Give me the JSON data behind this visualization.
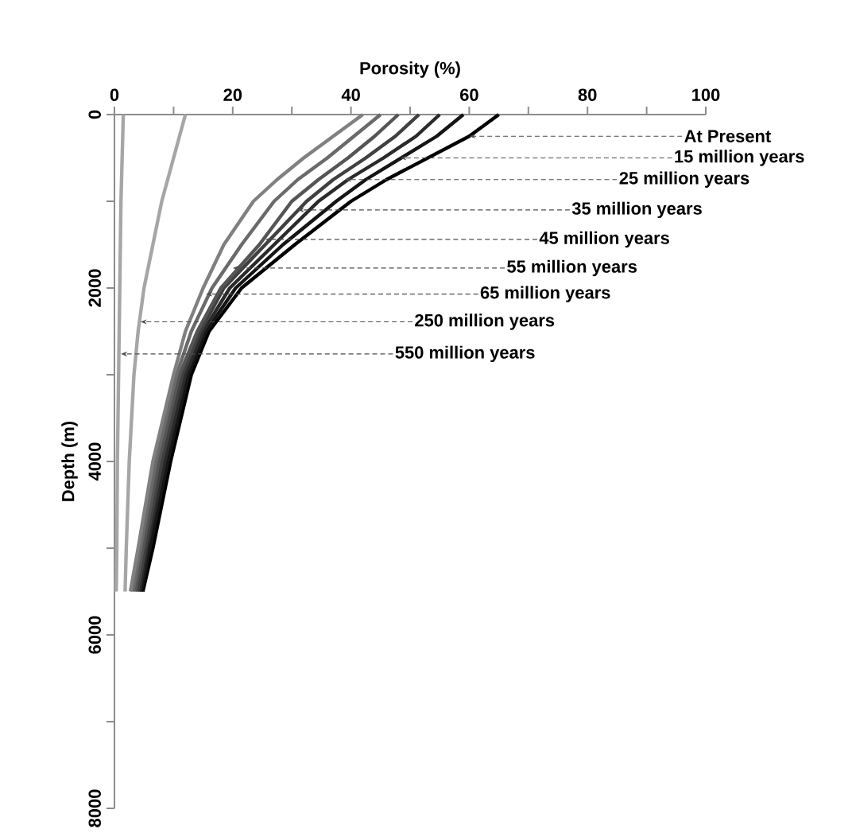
{
  "chart_data": {
    "type": "line",
    "xlabel": "Porosity (%)",
    "ylabel": "Depth (m)",
    "xlim": [
      0,
      100
    ],
    "ylim": [
      8000,
      0
    ],
    "xticks": [
      0,
      {
        "value": 10,
        "label": null
      },
      20,
      {
        "value": 30,
        "label": null
      },
      40,
      {
        "value": 50,
        "label": null
      },
      60,
      {
        "value": 70,
        "label": null
      },
      80,
      {
        "value": 90,
        "label": null
      },
      100
    ],
    "yticks": [
      0,
      {
        "value": 1000,
        "label": null
      },
      2000,
      {
        "value": 3000,
        "label": null
      },
      4000,
      {
        "value": 5000,
        "label": null
      },
      6000,
      {
        "value": 7000,
        "label": null
      },
      8000
    ],
    "series": [
      {
        "color": "#000000",
        "x": [
          65,
          60,
          53,
          46,
          40,
          30.5,
          21.5,
          16,
          13,
          9.5,
          6.5,
          4.8
        ],
        "values": [
          0,
          250,
          500,
          750,
          1000,
          1500,
          2000,
          2500,
          3000,
          4000,
          5000,
          5500
        ]
      },
      {
        "color": "#151515",
        "x": [
          59,
          54.5,
          48.5,
          42.5,
          37.5,
          28.5,
          20.5,
          15.5,
          12.5,
          9,
          6,
          4.5
        ],
        "values": [
          0,
          250,
          500,
          750,
          1000,
          1500,
          2000,
          2500,
          3000,
          4000,
          5000,
          5500
        ]
      },
      {
        "color": "#2a2a2a",
        "x": [
          55,
          51,
          45.5,
          39.5,
          34.5,
          27,
          19.5,
          15,
          12,
          8.5,
          5.5,
          4.2
        ],
        "values": [
          0,
          250,
          500,
          750,
          1000,
          1500,
          2000,
          2500,
          3000,
          4000,
          5000,
          5500
        ]
      },
      {
        "color": "#404040",
        "x": [
          51.5,
          47.5,
          42.5,
          37,
          32.5,
          25.5,
          18.5,
          14.5,
          11.5,
          8,
          5.2,
          3.9
        ],
        "values": [
          0,
          250,
          500,
          750,
          1000,
          1500,
          2000,
          2500,
          3000,
          4000,
          5000,
          5500
        ]
      },
      {
        "color": "#555555",
        "x": [
          48,
          44,
          39.5,
          34.5,
          30,
          24.5,
          18,
          14,
          11,
          7.5,
          4.8,
          3.5
        ],
        "values": [
          0,
          250,
          500,
          750,
          1000,
          1500,
          2000,
          2500,
          3000,
          4000,
          5000,
          5500
        ]
      },
      {
        "color": "#6a6a6a",
        "x": [
          45,
          40.5,
          36,
          31,
          27,
          21.5,
          16.5,
          13,
          10.5,
          7,
          4.4,
          3.1
        ],
        "values": [
          0,
          250,
          500,
          750,
          1000,
          1500,
          2000,
          2500,
          3000,
          4000,
          5000,
          5500
        ]
      },
      {
        "color": "#808080",
        "x": [
          42,
          37,
          32,
          27.5,
          23.5,
          18.5,
          15,
          12,
          10,
          6.5,
          4,
          2.7
        ],
        "values": [
          0,
          250,
          500,
          750,
          1000,
          1500,
          2000,
          2500,
          3000,
          4000,
          5000,
          5500
        ]
      },
      {
        "color": "#a6a6a6",
        "x": [
          12,
          11,
          10,
          9,
          8,
          6.5,
          5,
          4,
          3.3,
          2.5,
          2,
          1.8
        ],
        "values": [
          0,
          250,
          500,
          750,
          1000,
          1500,
          2000,
          2500,
          3000,
          4000,
          5000,
          5500
        ]
      },
      {
        "color": "#a6a6a6",
        "x": [
          1.5,
          1.4,
          1.3,
          1.2,
          1.1,
          1,
          0.9,
          0.8,
          0.7,
          0.5,
          0.4,
          0.3
        ],
        "values": [
          0,
          250,
          500,
          750,
          1000,
          1500,
          2000,
          2500,
          3000,
          4000,
          5000,
          5500
        ]
      }
    ],
    "annotations": [
      {
        "text": "At Present",
        "x": 60,
        "y": 250
      },
      {
        "text": "15 million years",
        "x": 48.3,
        "y": 500
      },
      {
        "text": "25 million years",
        "x": 39,
        "y": 750
      },
      {
        "text": "35 million years",
        "x": 31,
        "y": 1100
      },
      {
        "text": "45 million years",
        "x": 25.5,
        "y": 1440
      },
      {
        "text": "55 million years",
        "x": 20,
        "y": 1770
      },
      {
        "text": "65 million years",
        "x": 15.5,
        "y": 2070
      },
      {
        "text": "250 million years",
        "x": 4.4,
        "y": 2390
      },
      {
        "text": "550 million years",
        "x": 1.1,
        "y": 2760
      }
    ]
  }
}
